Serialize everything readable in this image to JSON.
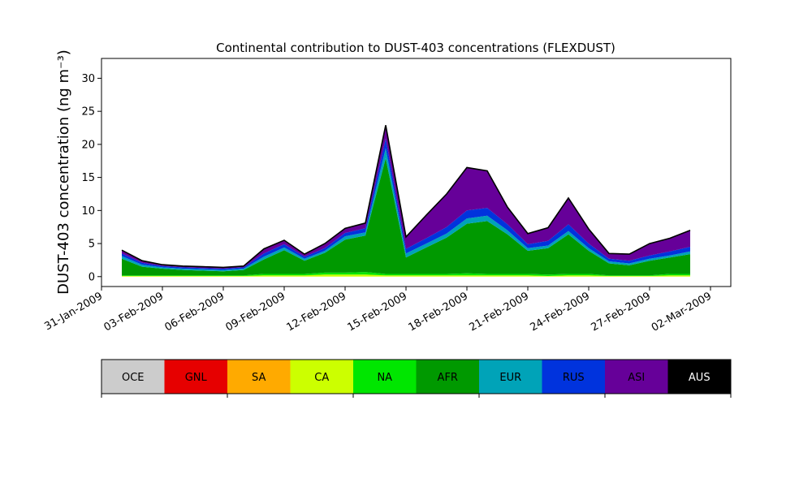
{
  "chart_data": {
    "type": "area",
    "title": "Continental contribution to DUST-403 concentrations (FLEXDUST)",
    "ylabel": "DUST-403 concentration (ng m⁻³)",
    "xlabel": "",
    "ylim": [
      -1.5,
      33
    ],
    "xlim": [
      "2009-01-31",
      "2009-03-03"
    ],
    "yticks": [
      0,
      5,
      10,
      15,
      20,
      25,
      30
    ],
    "xticks": [
      "31-Jan-2009",
      "03-Feb-2009",
      "06-Feb-2009",
      "09-Feb-2009",
      "12-Feb-2009",
      "15-Feb-2009",
      "18-Feb-2009",
      "21-Feb-2009",
      "24-Feb-2009",
      "27-Feb-2009",
      "02-Mar-2009"
    ],
    "grid": false,
    "stack_order": [
      "OCE",
      "GNL",
      "SA",
      "CA",
      "NA",
      "AFR",
      "EUR",
      "RUS",
      "ASI",
      "AUS"
    ],
    "x": [
      "2009-02-01",
      "2009-02-02",
      "2009-02-03",
      "2009-02-04",
      "2009-02-05",
      "2009-02-06",
      "2009-02-07",
      "2009-02-08",
      "2009-02-09",
      "2009-02-10",
      "2009-02-11",
      "2009-02-12",
      "2009-02-13",
      "2009-02-14",
      "2009-02-15",
      "2009-02-16",
      "2009-02-17",
      "2009-02-18",
      "2009-02-19",
      "2009-02-20",
      "2009-02-21",
      "2009-02-22",
      "2009-02-23",
      "2009-02-24",
      "2009-02-25",
      "2009-02-26",
      "2009-02-27",
      "2009-02-28",
      "2009-03-01"
    ],
    "series": [
      {
        "name": "OCE",
        "color": "#cccccc",
        "values": [
          0,
          0,
          0,
          0,
          0,
          0,
          0,
          0,
          0,
          0,
          0,
          0,
          0,
          0,
          0,
          0,
          0,
          0,
          0,
          0,
          0,
          0,
          0,
          0,
          0,
          0,
          0,
          0,
          0
        ]
      },
      {
        "name": "GNL",
        "color": "#e60000",
        "values": [
          0,
          0,
          0,
          0,
          0,
          0,
          0,
          0,
          0,
          0,
          0,
          0,
          0,
          0,
          0,
          0,
          0,
          0,
          0,
          0,
          0,
          0,
          0,
          0,
          0,
          0,
          0,
          0,
          0
        ]
      },
      {
        "name": "SA",
        "color": "#ffaa00",
        "values": [
          0,
          0,
          0,
          0,
          0,
          0,
          0,
          0,
          0,
          0,
          0,
          0,
          0,
          0,
          0,
          0,
          0,
          0,
          0,
          0,
          0,
          0,
          0,
          0,
          0,
          0,
          0,
          0,
          0
        ]
      },
      {
        "name": "CA",
        "color": "#ccff00",
        "values": [
          0.1,
          0.1,
          0.1,
          0.1,
          0.1,
          0.1,
          0.1,
          0.2,
          0.2,
          0.2,
          0.3,
          0.3,
          0.3,
          0.2,
          0.2,
          0.2,
          0.2,
          0.2,
          0.2,
          0.2,
          0.2,
          0.1,
          0.2,
          0.2,
          0.1,
          0.1,
          0.1,
          0.2,
          0.2
        ]
      },
      {
        "name": "NA",
        "color": "#00e600",
        "values": [
          0.1,
          0.1,
          0.1,
          0.1,
          0.1,
          0.1,
          0.1,
          0.2,
          0.2,
          0.2,
          0.3,
          0.3,
          0.4,
          0.2,
          0.2,
          0.2,
          0.2,
          0.3,
          0.2,
          0.2,
          0.2,
          0.2,
          0.2,
          0.2,
          0.1,
          0.1,
          0.1,
          0.2,
          0.2
        ]
      },
      {
        "name": "AFR",
        "color": "#009900",
        "values": [
          2.5,
          1.3,
          1.0,
          0.8,
          0.7,
          0.6,
          0.8,
          2.2,
          3.6,
          2.0,
          3.0,
          5.0,
          5.5,
          17.5,
          2.5,
          4.0,
          5.5,
          7.5,
          8.0,
          6.0,
          3.5,
          4.0,
          6.0,
          3.5,
          1.8,
          1.5,
          2.2,
          2.5,
          3.0
        ]
      },
      {
        "name": "EUR",
        "color": "#00a3b8",
        "values": [
          0.4,
          0.3,
          0.2,
          0.2,
          0.2,
          0.2,
          0.2,
          0.4,
          0.4,
          0.3,
          0.3,
          0.5,
          0.5,
          1.5,
          0.6,
          0.6,
          0.6,
          0.8,
          0.8,
          0.6,
          0.4,
          0.4,
          0.5,
          0.4,
          0.3,
          0.3,
          0.3,
          0.3,
          0.4
        ]
      },
      {
        "name": "RUS",
        "color": "#0033dd",
        "values": [
          0.4,
          0.3,
          0.2,
          0.2,
          0.2,
          0.2,
          0.2,
          0.5,
          0.5,
          0.3,
          0.4,
          0.5,
          0.6,
          1.5,
          0.7,
          0.8,
          1.0,
          1.2,
          1.2,
          0.9,
          0.6,
          0.7,
          1.0,
          0.7,
          0.4,
          0.4,
          0.5,
          0.6,
          0.7
        ]
      },
      {
        "name": "ASI",
        "color": "#660099",
        "values": [
          0.5,
          0.3,
          0.2,
          0.2,
          0.2,
          0.2,
          0.2,
          0.7,
          0.6,
          0.4,
          0.7,
          0.7,
          0.8,
          2.0,
          1.8,
          3.5,
          5.0,
          6.5,
          5.6,
          2.6,
          1.6,
          2.0,
          4.0,
          2.2,
          0.8,
          1.0,
          1.8,
          2.0,
          2.5
        ]
      },
      {
        "name": "AUS",
        "color": "#000000",
        "values": [
          0,
          0,
          0,
          0,
          0,
          0,
          0,
          0,
          0,
          0,
          0,
          0,
          0,
          0,
          0,
          0,
          0,
          0,
          0,
          0,
          0,
          0,
          0,
          0,
          0,
          0,
          0,
          0,
          0
        ]
      }
    ],
    "colorbar": {
      "labels": [
        "OCE",
        "GNL",
        "SA",
        "CA",
        "NA",
        "AFR",
        "EUR",
        "RUS",
        "ASI",
        "AUS"
      ],
      "colors": [
        "#cccccc",
        "#e60000",
        "#ffaa00",
        "#ccff00",
        "#00e600",
        "#009900",
        "#00a3b8",
        "#0033dd",
        "#660099",
        "#000000"
      ],
      "label_colors": [
        "#000000",
        "#000000",
        "#000000",
        "#000000",
        "#000000",
        "#000000",
        "#000000",
        "#000000",
        "#000000",
        "#ffffff"
      ]
    }
  }
}
